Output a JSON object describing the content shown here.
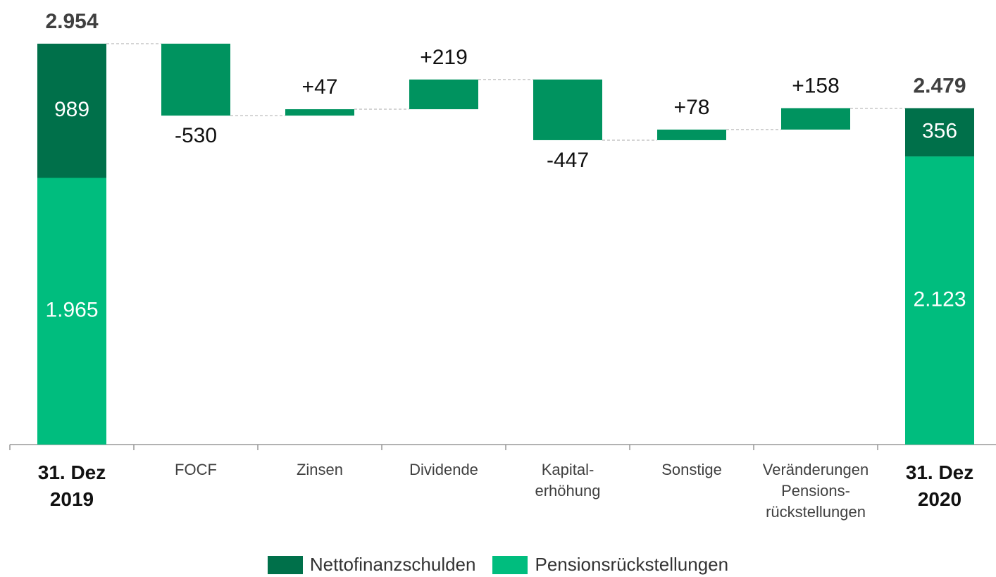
{
  "chart_data": {
    "type": "waterfall",
    "categories": [
      "31. Dez\n2019",
      "FOCF",
      "Zinsen",
      "Dividende",
      "Kapital-\nerhöhung",
      "Sonstige",
      "Veränderungen\nPensions-\nrückstellungen",
      "31. Dez\n2020"
    ],
    "totals": {
      "values": [
        2954,
        null,
        null,
        null,
        null,
        null,
        null,
        2479
      ],
      "value_labels": [
        "2.954",
        null,
        null,
        null,
        null,
        null,
        null,
        "2.479"
      ]
    },
    "series": [
      {
        "name": "Nettofinanzschulden",
        "color": "#00704a",
        "values": [
          989,
          null,
          null,
          null,
          null,
          null,
          null,
          356
        ]
      },
      {
        "name": "Pensionsrückstellungen",
        "color": "#00bd7e",
        "values": [
          1965,
          null,
          null,
          null,
          null,
          null,
          null,
          2123
        ],
        "value_labels": [
          "1.965",
          null,
          null,
          null,
          null,
          null,
          null,
          "2.123"
        ]
      }
    ],
    "changes": {
      "color": "#00935f",
      "values": [
        null,
        -530,
        47,
        219,
        -447,
        78,
        158,
        null
      ],
      "value_labels": [
        null,
        "-530",
        "+47",
        "+219",
        "-447",
        "+78",
        "+158",
        null
      ]
    }
  }
}
